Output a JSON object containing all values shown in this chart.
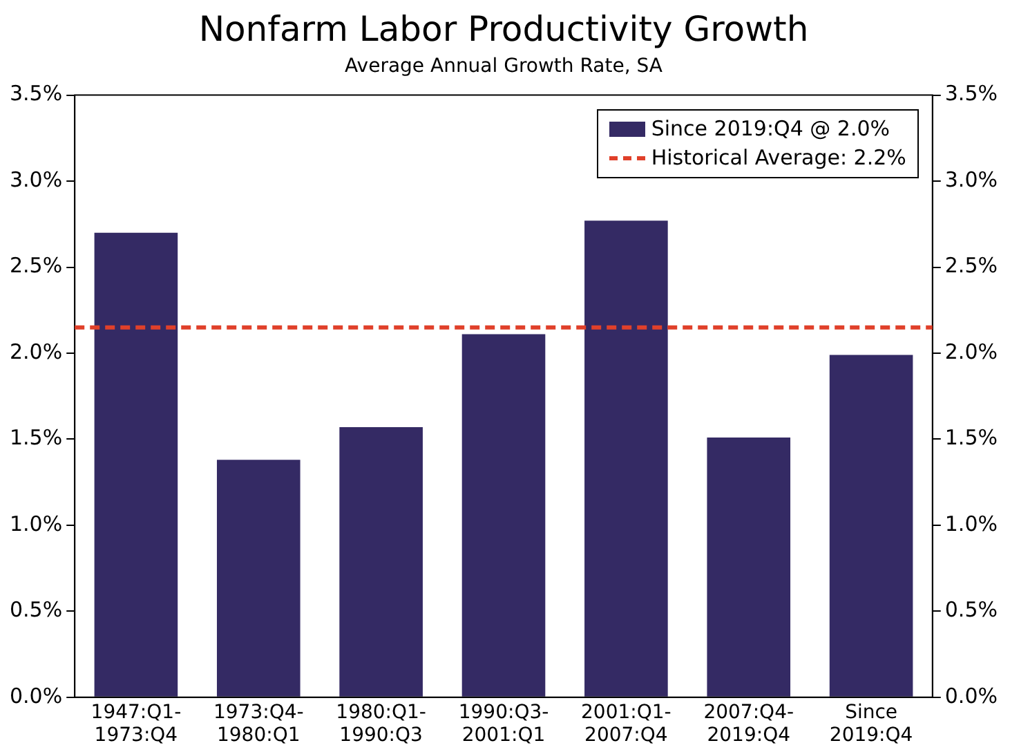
{
  "chart_data": {
    "type": "bar",
    "title": "Nonfarm Labor Productivity Growth",
    "subtitle": "Average Annual Growth Rate, SA",
    "categories": [
      "1947:Q1-\n1973:Q4",
      "1973:Q4-\n1980:Q1",
      "1980:Q1-\n1990:Q3",
      "1990:Q3-\n2001:Q1",
      "2001:Q1-\n2007:Q4",
      "2007:Q4-\n2019:Q4",
      "Since\n2019:Q4"
    ],
    "series": [
      {
        "name": "Since 2019:Q4 @ 2.0%",
        "color": "#342a64",
        "values": [
          2.7,
          1.38,
          1.57,
          2.11,
          2.77,
          1.51,
          1.99
        ]
      }
    ],
    "ref_lines": [
      {
        "axis": "y",
        "value": 2.15,
        "label": "Historical Average: 2.2%",
        "color": "#e0402a",
        "line_style": "dashed"
      }
    ],
    "ylim": [
      0,
      3.5
    ],
    "yticks": [
      {
        "value": 0,
        "label": "0.0%"
      },
      {
        "value": 0.5,
        "label": "0.5%"
      },
      {
        "value": 1,
        "label": "1.0%"
      },
      {
        "value": 1.5,
        "label": "1.5%"
      },
      {
        "value": 2,
        "label": "2.0%"
      },
      {
        "value": 2.5,
        "label": "2.5%"
      },
      {
        "value": 3,
        "label": "3.0%"
      },
      {
        "value": 3.5,
        "label": "3.5%"
      }
    ],
    "y2lim": [
      0,
      3.5
    ],
    "y2ticks": [
      {
        "value": 0,
        "label": "0.0%"
      },
      {
        "value": 0.5,
        "label": "0.5%"
      },
      {
        "value": 1,
        "label": "1.0%"
      },
      {
        "value": 1.5,
        "label": "1.5%"
      },
      {
        "value": 2,
        "label": "2.0%"
      },
      {
        "value": 2.5,
        "label": "2.5%"
      },
      {
        "value": 3,
        "label": "3.0%"
      },
      {
        "value": 3.5,
        "label": "3.5%"
      }
    ],
    "grid": false,
    "legend": "top right"
  }
}
